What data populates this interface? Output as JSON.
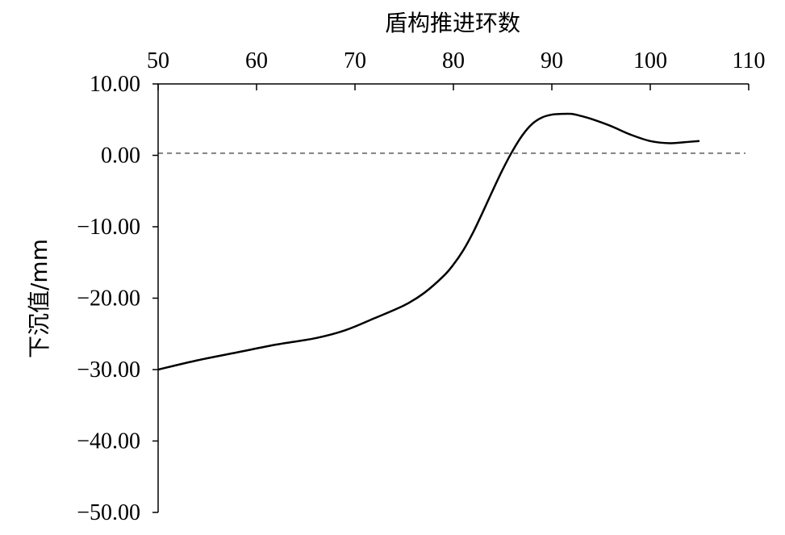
{
  "chart_data": {
    "type": "line",
    "xlabel": "盾构推进环数",
    "ylabel": "下沉值/mm",
    "x_axis_position": "top",
    "xlim": [
      50,
      110
    ],
    "ylim": [
      -50,
      10
    ],
    "x_ticks": [
      "50",
      "60",
      "70",
      "80",
      "90",
      "100",
      "110"
    ],
    "y_ticks": [
      "10.00",
      "0.00",
      "−10.00",
      "−20.00",
      "−30.00",
      "−40.00",
      "−50.00"
    ],
    "grid": false,
    "legend": "none",
    "series": [
      {
        "color": "#000000",
        "x": [
          50,
          54,
          58,
          62,
          66,
          69,
          72,
          75,
          77,
          79,
          80,
          81,
          82,
          83,
          84,
          85,
          86,
          87,
          88,
          89,
          90,
          91,
          92,
          93,
          94,
          96,
          98,
          100,
          102,
          104,
          105
        ],
        "y": [
          -30.0,
          -28.7,
          -27.6,
          -26.5,
          -25.6,
          -24.5,
          -22.8,
          -21.0,
          -19.3,
          -16.9,
          -15.3,
          -13.3,
          -10.8,
          -7.9,
          -4.9,
          -2.0,
          0.6,
          2.8,
          4.4,
          5.3,
          5.7,
          5.8,
          5.8,
          5.5,
          5.1,
          4.1,
          2.9,
          2.0,
          1.7,
          1.9,
          2.0
        ]
      }
    ],
    "reference_lines": [
      {
        "y": 0.3,
        "style": "dashed",
        "color": "#808080"
      }
    ]
  }
}
